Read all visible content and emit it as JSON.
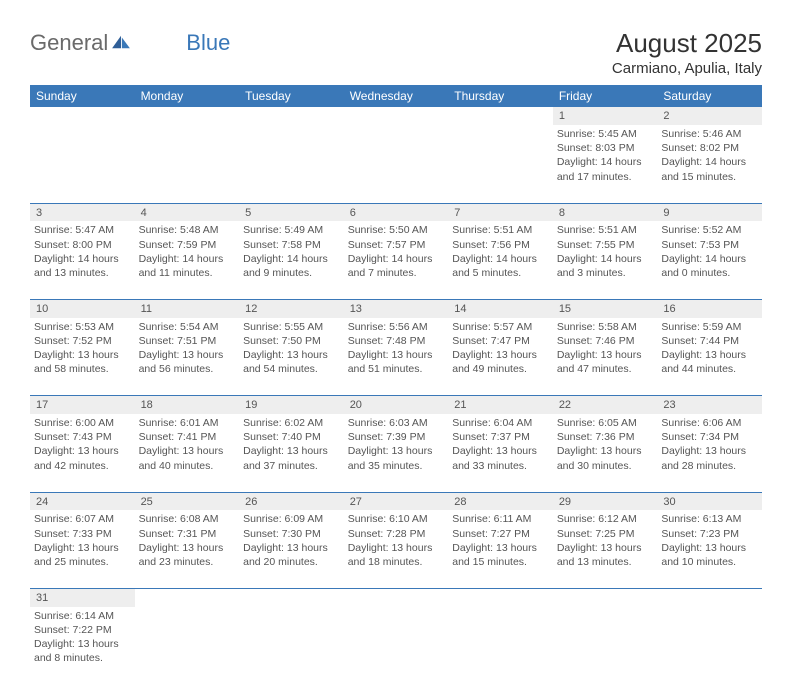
{
  "logo": {
    "text1": "General",
    "text2": "Blue"
  },
  "title": "August 2025",
  "location": "Carmiano, Apulia, Italy",
  "colors": {
    "header_bg": "#3a78b8",
    "header_text": "#ffffff",
    "daynum_bg": "#eeeeee",
    "body_text": "#555555",
    "rule": "#3a78b8"
  },
  "fonts": {
    "title_size": 26,
    "location_size": 15,
    "header_size": 12,
    "cell_size": 10.5
  },
  "dayHeaders": [
    "Sunday",
    "Monday",
    "Tuesday",
    "Wednesday",
    "Thursday",
    "Friday",
    "Saturday"
  ],
  "weeks": [
    [
      null,
      null,
      null,
      null,
      null,
      {
        "n": "1",
        "sunrise": "Sunrise: 5:45 AM",
        "sunset": "Sunset: 8:03 PM",
        "day1": "Daylight: 14 hours",
        "day2": "and 17 minutes."
      },
      {
        "n": "2",
        "sunrise": "Sunrise: 5:46 AM",
        "sunset": "Sunset: 8:02 PM",
        "day1": "Daylight: 14 hours",
        "day2": "and 15 minutes."
      }
    ],
    [
      {
        "n": "3",
        "sunrise": "Sunrise: 5:47 AM",
        "sunset": "Sunset: 8:00 PM",
        "day1": "Daylight: 14 hours",
        "day2": "and 13 minutes."
      },
      {
        "n": "4",
        "sunrise": "Sunrise: 5:48 AM",
        "sunset": "Sunset: 7:59 PM",
        "day1": "Daylight: 14 hours",
        "day2": "and 11 minutes."
      },
      {
        "n": "5",
        "sunrise": "Sunrise: 5:49 AM",
        "sunset": "Sunset: 7:58 PM",
        "day1": "Daylight: 14 hours",
        "day2": "and 9 minutes."
      },
      {
        "n": "6",
        "sunrise": "Sunrise: 5:50 AM",
        "sunset": "Sunset: 7:57 PM",
        "day1": "Daylight: 14 hours",
        "day2": "and 7 minutes."
      },
      {
        "n": "7",
        "sunrise": "Sunrise: 5:51 AM",
        "sunset": "Sunset: 7:56 PM",
        "day1": "Daylight: 14 hours",
        "day2": "and 5 minutes."
      },
      {
        "n": "8",
        "sunrise": "Sunrise: 5:51 AM",
        "sunset": "Sunset: 7:55 PM",
        "day1": "Daylight: 14 hours",
        "day2": "and 3 minutes."
      },
      {
        "n": "9",
        "sunrise": "Sunrise: 5:52 AM",
        "sunset": "Sunset: 7:53 PM",
        "day1": "Daylight: 14 hours",
        "day2": "and 0 minutes."
      }
    ],
    [
      {
        "n": "10",
        "sunrise": "Sunrise: 5:53 AM",
        "sunset": "Sunset: 7:52 PM",
        "day1": "Daylight: 13 hours",
        "day2": "and 58 minutes."
      },
      {
        "n": "11",
        "sunrise": "Sunrise: 5:54 AM",
        "sunset": "Sunset: 7:51 PM",
        "day1": "Daylight: 13 hours",
        "day2": "and 56 minutes."
      },
      {
        "n": "12",
        "sunrise": "Sunrise: 5:55 AM",
        "sunset": "Sunset: 7:50 PM",
        "day1": "Daylight: 13 hours",
        "day2": "and 54 minutes."
      },
      {
        "n": "13",
        "sunrise": "Sunrise: 5:56 AM",
        "sunset": "Sunset: 7:48 PM",
        "day1": "Daylight: 13 hours",
        "day2": "and 51 minutes."
      },
      {
        "n": "14",
        "sunrise": "Sunrise: 5:57 AM",
        "sunset": "Sunset: 7:47 PM",
        "day1": "Daylight: 13 hours",
        "day2": "and 49 minutes."
      },
      {
        "n": "15",
        "sunrise": "Sunrise: 5:58 AM",
        "sunset": "Sunset: 7:46 PM",
        "day1": "Daylight: 13 hours",
        "day2": "and 47 minutes."
      },
      {
        "n": "16",
        "sunrise": "Sunrise: 5:59 AM",
        "sunset": "Sunset: 7:44 PM",
        "day1": "Daylight: 13 hours",
        "day2": "and 44 minutes."
      }
    ],
    [
      {
        "n": "17",
        "sunrise": "Sunrise: 6:00 AM",
        "sunset": "Sunset: 7:43 PM",
        "day1": "Daylight: 13 hours",
        "day2": "and 42 minutes."
      },
      {
        "n": "18",
        "sunrise": "Sunrise: 6:01 AM",
        "sunset": "Sunset: 7:41 PM",
        "day1": "Daylight: 13 hours",
        "day2": "and 40 minutes."
      },
      {
        "n": "19",
        "sunrise": "Sunrise: 6:02 AM",
        "sunset": "Sunset: 7:40 PM",
        "day1": "Daylight: 13 hours",
        "day2": "and 37 minutes."
      },
      {
        "n": "20",
        "sunrise": "Sunrise: 6:03 AM",
        "sunset": "Sunset: 7:39 PM",
        "day1": "Daylight: 13 hours",
        "day2": "and 35 minutes."
      },
      {
        "n": "21",
        "sunrise": "Sunrise: 6:04 AM",
        "sunset": "Sunset: 7:37 PM",
        "day1": "Daylight: 13 hours",
        "day2": "and 33 minutes."
      },
      {
        "n": "22",
        "sunrise": "Sunrise: 6:05 AM",
        "sunset": "Sunset: 7:36 PM",
        "day1": "Daylight: 13 hours",
        "day2": "and 30 minutes."
      },
      {
        "n": "23",
        "sunrise": "Sunrise: 6:06 AM",
        "sunset": "Sunset: 7:34 PM",
        "day1": "Daylight: 13 hours",
        "day2": "and 28 minutes."
      }
    ],
    [
      {
        "n": "24",
        "sunrise": "Sunrise: 6:07 AM",
        "sunset": "Sunset: 7:33 PM",
        "day1": "Daylight: 13 hours",
        "day2": "and 25 minutes."
      },
      {
        "n": "25",
        "sunrise": "Sunrise: 6:08 AM",
        "sunset": "Sunset: 7:31 PM",
        "day1": "Daylight: 13 hours",
        "day2": "and 23 minutes."
      },
      {
        "n": "26",
        "sunrise": "Sunrise: 6:09 AM",
        "sunset": "Sunset: 7:30 PM",
        "day1": "Daylight: 13 hours",
        "day2": "and 20 minutes."
      },
      {
        "n": "27",
        "sunrise": "Sunrise: 6:10 AM",
        "sunset": "Sunset: 7:28 PM",
        "day1": "Daylight: 13 hours",
        "day2": "and 18 minutes."
      },
      {
        "n": "28",
        "sunrise": "Sunrise: 6:11 AM",
        "sunset": "Sunset: 7:27 PM",
        "day1": "Daylight: 13 hours",
        "day2": "and 15 minutes."
      },
      {
        "n": "29",
        "sunrise": "Sunrise: 6:12 AM",
        "sunset": "Sunset: 7:25 PM",
        "day1": "Daylight: 13 hours",
        "day2": "and 13 minutes."
      },
      {
        "n": "30",
        "sunrise": "Sunrise: 6:13 AM",
        "sunset": "Sunset: 7:23 PM",
        "day1": "Daylight: 13 hours",
        "day2": "and 10 minutes."
      }
    ],
    [
      {
        "n": "31",
        "sunrise": "Sunrise: 6:14 AM",
        "sunset": "Sunset: 7:22 PM",
        "day1": "Daylight: 13 hours",
        "day2": "and 8 minutes."
      },
      null,
      null,
      null,
      null,
      null,
      null
    ]
  ]
}
